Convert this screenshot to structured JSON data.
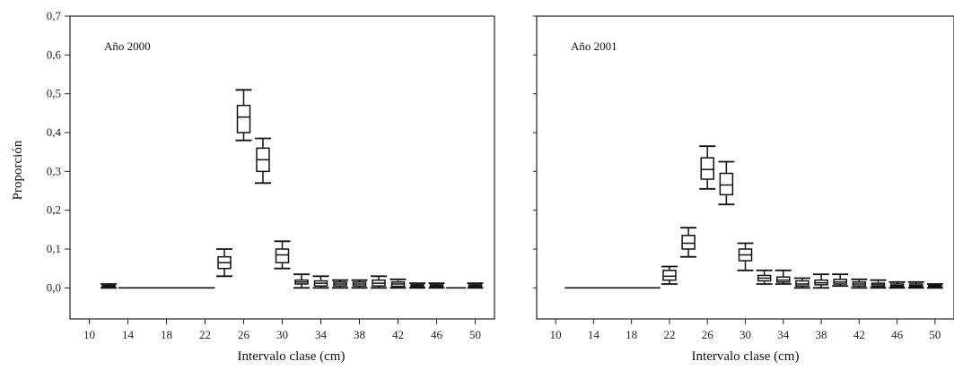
{
  "ylabel": "Proporción",
  "chart_data": [
    {
      "type": "boxplot",
      "title": "Año 2000",
      "xlabel": "Intervalo clase (cm)",
      "ylabel": "Proporción",
      "xlim": [
        8,
        52
      ],
      "ylim": [
        -0.08,
        0.7
      ],
      "xticks": [
        "10",
        "14",
        "18",
        "22",
        "26",
        "30",
        "34",
        "38",
        "42",
        "46",
        "50"
      ],
      "yticks": [
        "0,0",
        "0,1",
        "0,2",
        "0,3",
        "0,4",
        "0,5",
        "0,6",
        "0,7"
      ],
      "boxes": [
        {
          "x": 12,
          "min": 0.0,
          "q1": 0.0,
          "median": 0.003,
          "q3": 0.006,
          "max": 0.01
        },
        {
          "x": 14,
          "min": 0.0,
          "q1": 0.0,
          "median": 0.0,
          "q3": 0.0,
          "max": 0.0
        },
        {
          "x": 16,
          "min": 0.0,
          "q1": 0.0,
          "median": 0.0,
          "q3": 0.0,
          "max": 0.0
        },
        {
          "x": 18,
          "min": 0.0,
          "q1": 0.0,
          "median": 0.0,
          "q3": 0.0,
          "max": 0.0
        },
        {
          "x": 20,
          "min": 0.0,
          "q1": 0.0,
          "median": 0.0,
          "q3": 0.0,
          "max": 0.0
        },
        {
          "x": 22,
          "min": 0.0,
          "q1": 0.0,
          "median": 0.0,
          "q3": 0.0,
          "max": 0.0
        },
        {
          "x": 24,
          "min": 0.03,
          "q1": 0.05,
          "median": 0.065,
          "q3": 0.08,
          "max": 0.1
        },
        {
          "x": 26,
          "min": 0.38,
          "q1": 0.4,
          "median": 0.44,
          "q3": 0.47,
          "max": 0.51
        },
        {
          "x": 28,
          "min": 0.27,
          "q1": 0.3,
          "median": 0.33,
          "q3": 0.36,
          "max": 0.385
        },
        {
          "x": 30,
          "min": 0.05,
          "q1": 0.065,
          "median": 0.085,
          "q3": 0.1,
          "max": 0.12
        },
        {
          "x": 32,
          "min": 0.0,
          "q1": 0.01,
          "median": 0.015,
          "q3": 0.02,
          "max": 0.035
        },
        {
          "x": 34,
          "min": 0.0,
          "q1": 0.005,
          "median": 0.012,
          "q3": 0.018,
          "max": 0.03
        },
        {
          "x": 36,
          "min": 0.0,
          "q1": 0.005,
          "median": 0.01,
          "q3": 0.015,
          "max": 0.02
        },
        {
          "x": 38,
          "min": 0.0,
          "q1": 0.005,
          "median": 0.01,
          "q3": 0.015,
          "max": 0.02
        },
        {
          "x": 40,
          "min": 0.0,
          "q1": 0.005,
          "median": 0.012,
          "q3": 0.02,
          "max": 0.03
        },
        {
          "x": 42,
          "min": 0.0,
          "q1": 0.004,
          "median": 0.01,
          "q3": 0.015,
          "max": 0.022
        },
        {
          "x": 44,
          "min": 0.0,
          "q1": 0.002,
          "median": 0.005,
          "q3": 0.008,
          "max": 0.012
        },
        {
          "x": 46,
          "min": 0.0,
          "q1": 0.002,
          "median": 0.005,
          "q3": 0.008,
          "max": 0.012
        },
        {
          "x": 48,
          "min": 0.0,
          "q1": 0.0,
          "median": 0.0,
          "q3": 0.0,
          "max": 0.0
        },
        {
          "x": 50,
          "min": 0.0,
          "q1": 0.002,
          "median": 0.005,
          "q3": 0.008,
          "max": 0.012
        }
      ]
    },
    {
      "type": "boxplot",
      "title": "Año 2001",
      "xlabel": "Intervalo clase (cm)",
      "ylabel": "",
      "xlim": [
        8,
        52
      ],
      "ylim": [
        -0.08,
        0.7
      ],
      "xticks": [
        "10",
        "14",
        "18",
        "22",
        "26",
        "30",
        "34",
        "38",
        "42",
        "46",
        "50"
      ],
      "yticks": [],
      "boxes": [
        {
          "x": 12,
          "min": 0.0,
          "q1": 0.0,
          "median": 0.0,
          "q3": 0.0,
          "max": 0.0
        },
        {
          "x": 14,
          "min": 0.0,
          "q1": 0.0,
          "median": 0.0,
          "q3": 0.0,
          "max": 0.0
        },
        {
          "x": 16,
          "min": 0.0,
          "q1": 0.0,
          "median": 0.0,
          "q3": 0.0,
          "max": 0.0
        },
        {
          "x": 18,
          "min": 0.0,
          "q1": 0.0,
          "median": 0.0,
          "q3": 0.0,
          "max": 0.0
        },
        {
          "x": 20,
          "min": 0.0,
          "q1": 0.0,
          "median": 0.0,
          "q3": 0.0,
          "max": 0.0
        },
        {
          "x": 22,
          "min": 0.01,
          "q1": 0.02,
          "median": 0.03,
          "q3": 0.045,
          "max": 0.055
        },
        {
          "x": 24,
          "min": 0.08,
          "q1": 0.1,
          "median": 0.115,
          "q3": 0.135,
          "max": 0.155
        },
        {
          "x": 26,
          "min": 0.255,
          "q1": 0.28,
          "median": 0.305,
          "q3": 0.335,
          "max": 0.365
        },
        {
          "x": 28,
          "min": 0.215,
          "q1": 0.24,
          "median": 0.265,
          "q3": 0.295,
          "max": 0.325
        },
        {
          "x": 30,
          "min": 0.045,
          "q1": 0.07,
          "median": 0.085,
          "q3": 0.1,
          "max": 0.115
        },
        {
          "x": 32,
          "min": 0.01,
          "q1": 0.018,
          "median": 0.025,
          "q3": 0.032,
          "max": 0.045
        },
        {
          "x": 34,
          "min": 0.01,
          "q1": 0.015,
          "median": 0.02,
          "q3": 0.028,
          "max": 0.045
        },
        {
          "x": 36,
          "min": 0.0,
          "q1": 0.005,
          "median": 0.01,
          "q3": 0.018,
          "max": 0.025
        },
        {
          "x": 38,
          "min": 0.0,
          "q1": 0.008,
          "median": 0.013,
          "q3": 0.02,
          "max": 0.035
        },
        {
          "x": 40,
          "min": 0.005,
          "q1": 0.01,
          "median": 0.015,
          "q3": 0.022,
          "max": 0.035
        },
        {
          "x": 42,
          "min": 0.0,
          "q1": 0.005,
          "median": 0.01,
          "q3": 0.015,
          "max": 0.022
        },
        {
          "x": 44,
          "min": 0.0,
          "q1": 0.004,
          "median": 0.008,
          "q3": 0.012,
          "max": 0.02
        },
        {
          "x": 46,
          "min": 0.0,
          "q1": 0.003,
          "median": 0.006,
          "q3": 0.01,
          "max": 0.015
        },
        {
          "x": 48,
          "min": 0.0,
          "q1": 0.003,
          "median": 0.006,
          "q3": 0.01,
          "max": 0.015
        },
        {
          "x": 50,
          "min": 0.0,
          "q1": 0.002,
          "median": 0.004,
          "q3": 0.007,
          "max": 0.01
        }
      ]
    }
  ]
}
